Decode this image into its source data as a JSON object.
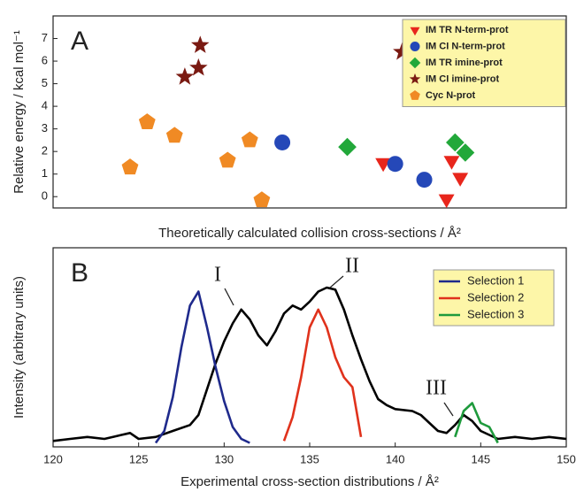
{
  "chart_data": [
    {
      "type": "scatter",
      "panel_label": "A",
      "x_label": "Theoretically calculated collision cross-sections / Å²",
      "y_label": "Relative energy / kcal mol⁻¹",
      "xlim": [
        120,
        150
      ],
      "ylim": [
        -0.5,
        8
      ],
      "yticks": [
        0,
        1,
        2,
        3,
        4,
        5,
        6,
        7
      ],
      "legend": "top-right",
      "series": [
        {
          "name": "IM TR N-term-prot",
          "color": "#e8261c",
          "marker": "triangle-down",
          "x": [
            139.3,
            143.0,
            143.3,
            143.8
          ],
          "values": [
            1.5,
            -0.1,
            1.6,
            0.85
          ]
        },
        {
          "name": "IM CI N-term-prot",
          "color": "#2548b8",
          "marker": "circle",
          "x": [
            133.4,
            140.0,
            141.7
          ],
          "values": [
            2.4,
            1.45,
            0.75
          ]
        },
        {
          "name": "IM TR imine-prot",
          "color": "#22a83a",
          "marker": "diamond",
          "x": [
            137.2,
            143.5,
            144.1
          ],
          "values": [
            2.2,
            2.4,
            1.95
          ]
        },
        {
          "name": "IM CI imine-prot",
          "color": "#7a1a12",
          "marker": "star",
          "x": [
            128.6,
            128.5,
            127.7,
            140.4
          ],
          "values": [
            6.7,
            5.7,
            5.3,
            6.4
          ]
        },
        {
          "name": "Cyc N-prot",
          "color": "#f08a24",
          "marker": "pentagon",
          "x": [
            124.5,
            125.5,
            127.1,
            130.2,
            131.5,
            132.2
          ],
          "values": [
            1.3,
            3.3,
            2.7,
            1.6,
            2.5,
            -0.15
          ]
        }
      ]
    },
    {
      "type": "line",
      "panel_label": "B",
      "x_label": "Experimental cross-section distributions / Å²",
      "y_label": "Intensity (arbitrary units)",
      "xlim": [
        120,
        150
      ],
      "ylim": [
        0,
        1
      ],
      "xticks": [
        120,
        125,
        130,
        135,
        140,
        145,
        150
      ],
      "legend": "top-right",
      "annotations": [
        "I",
        "II",
        "III"
      ],
      "series": [
        {
          "color": "#000000",
          "x": [
            120,
            121,
            122,
            123,
            124,
            124.5,
            125,
            126,
            127,
            128,
            128.5,
            129,
            129.5,
            130,
            130.5,
            131,
            131.5,
            132,
            132.5,
            133,
            133.5,
            134,
            134.5,
            135,
            135.5,
            136,
            136.5,
            137,
            137.5,
            138,
            138.5,
            139,
            139.5,
            140,
            141,
            141.5,
            142,
            142.5,
            143,
            143.5,
            144,
            144.5,
            145,
            145.5,
            146,
            147,
            148,
            149,
            150
          ],
          "values": [
            0.03,
            0.04,
            0.05,
            0.04,
            0.06,
            0.07,
            0.04,
            0.05,
            0.08,
            0.11,
            0.16,
            0.29,
            0.42,
            0.53,
            0.62,
            0.69,
            0.64,
            0.56,
            0.51,
            0.58,
            0.67,
            0.71,
            0.69,
            0.73,
            0.78,
            0.8,
            0.79,
            0.69,
            0.56,
            0.44,
            0.33,
            0.24,
            0.21,
            0.19,
            0.18,
            0.16,
            0.12,
            0.08,
            0.07,
            0.11,
            0.16,
            0.13,
            0.08,
            0.06,
            0.04,
            0.05,
            0.04,
            0.05,
            0.04
          ]
        },
        {
          "name": "Selection 1",
          "color": "#1f2a8c",
          "x": [
            126,
            126.5,
            127,
            127.5,
            128,
            128.5,
            129,
            129.5,
            130,
            130.5,
            131,
            131.5
          ],
          "values": [
            0.02,
            0.08,
            0.25,
            0.5,
            0.71,
            0.78,
            0.6,
            0.4,
            0.23,
            0.1,
            0.04,
            0.02
          ]
        },
        {
          "name": "Selection 2",
          "color": "#e0321c",
          "x": [
            133.5,
            134,
            134.5,
            135,
            135.5,
            136,
            136.5,
            137,
            137.5,
            138
          ],
          "values": [
            0.03,
            0.15,
            0.35,
            0.6,
            0.69,
            0.6,
            0.45,
            0.35,
            0.3,
            0.05
          ]
        },
        {
          "name": "Selection 3",
          "color": "#1e9a3c",
          "x": [
            143.5,
            144,
            144.5,
            145,
            145.5,
            146
          ],
          "values": [
            0.05,
            0.18,
            0.22,
            0.12,
            0.1,
            0.02
          ]
        }
      ]
    }
  ]
}
